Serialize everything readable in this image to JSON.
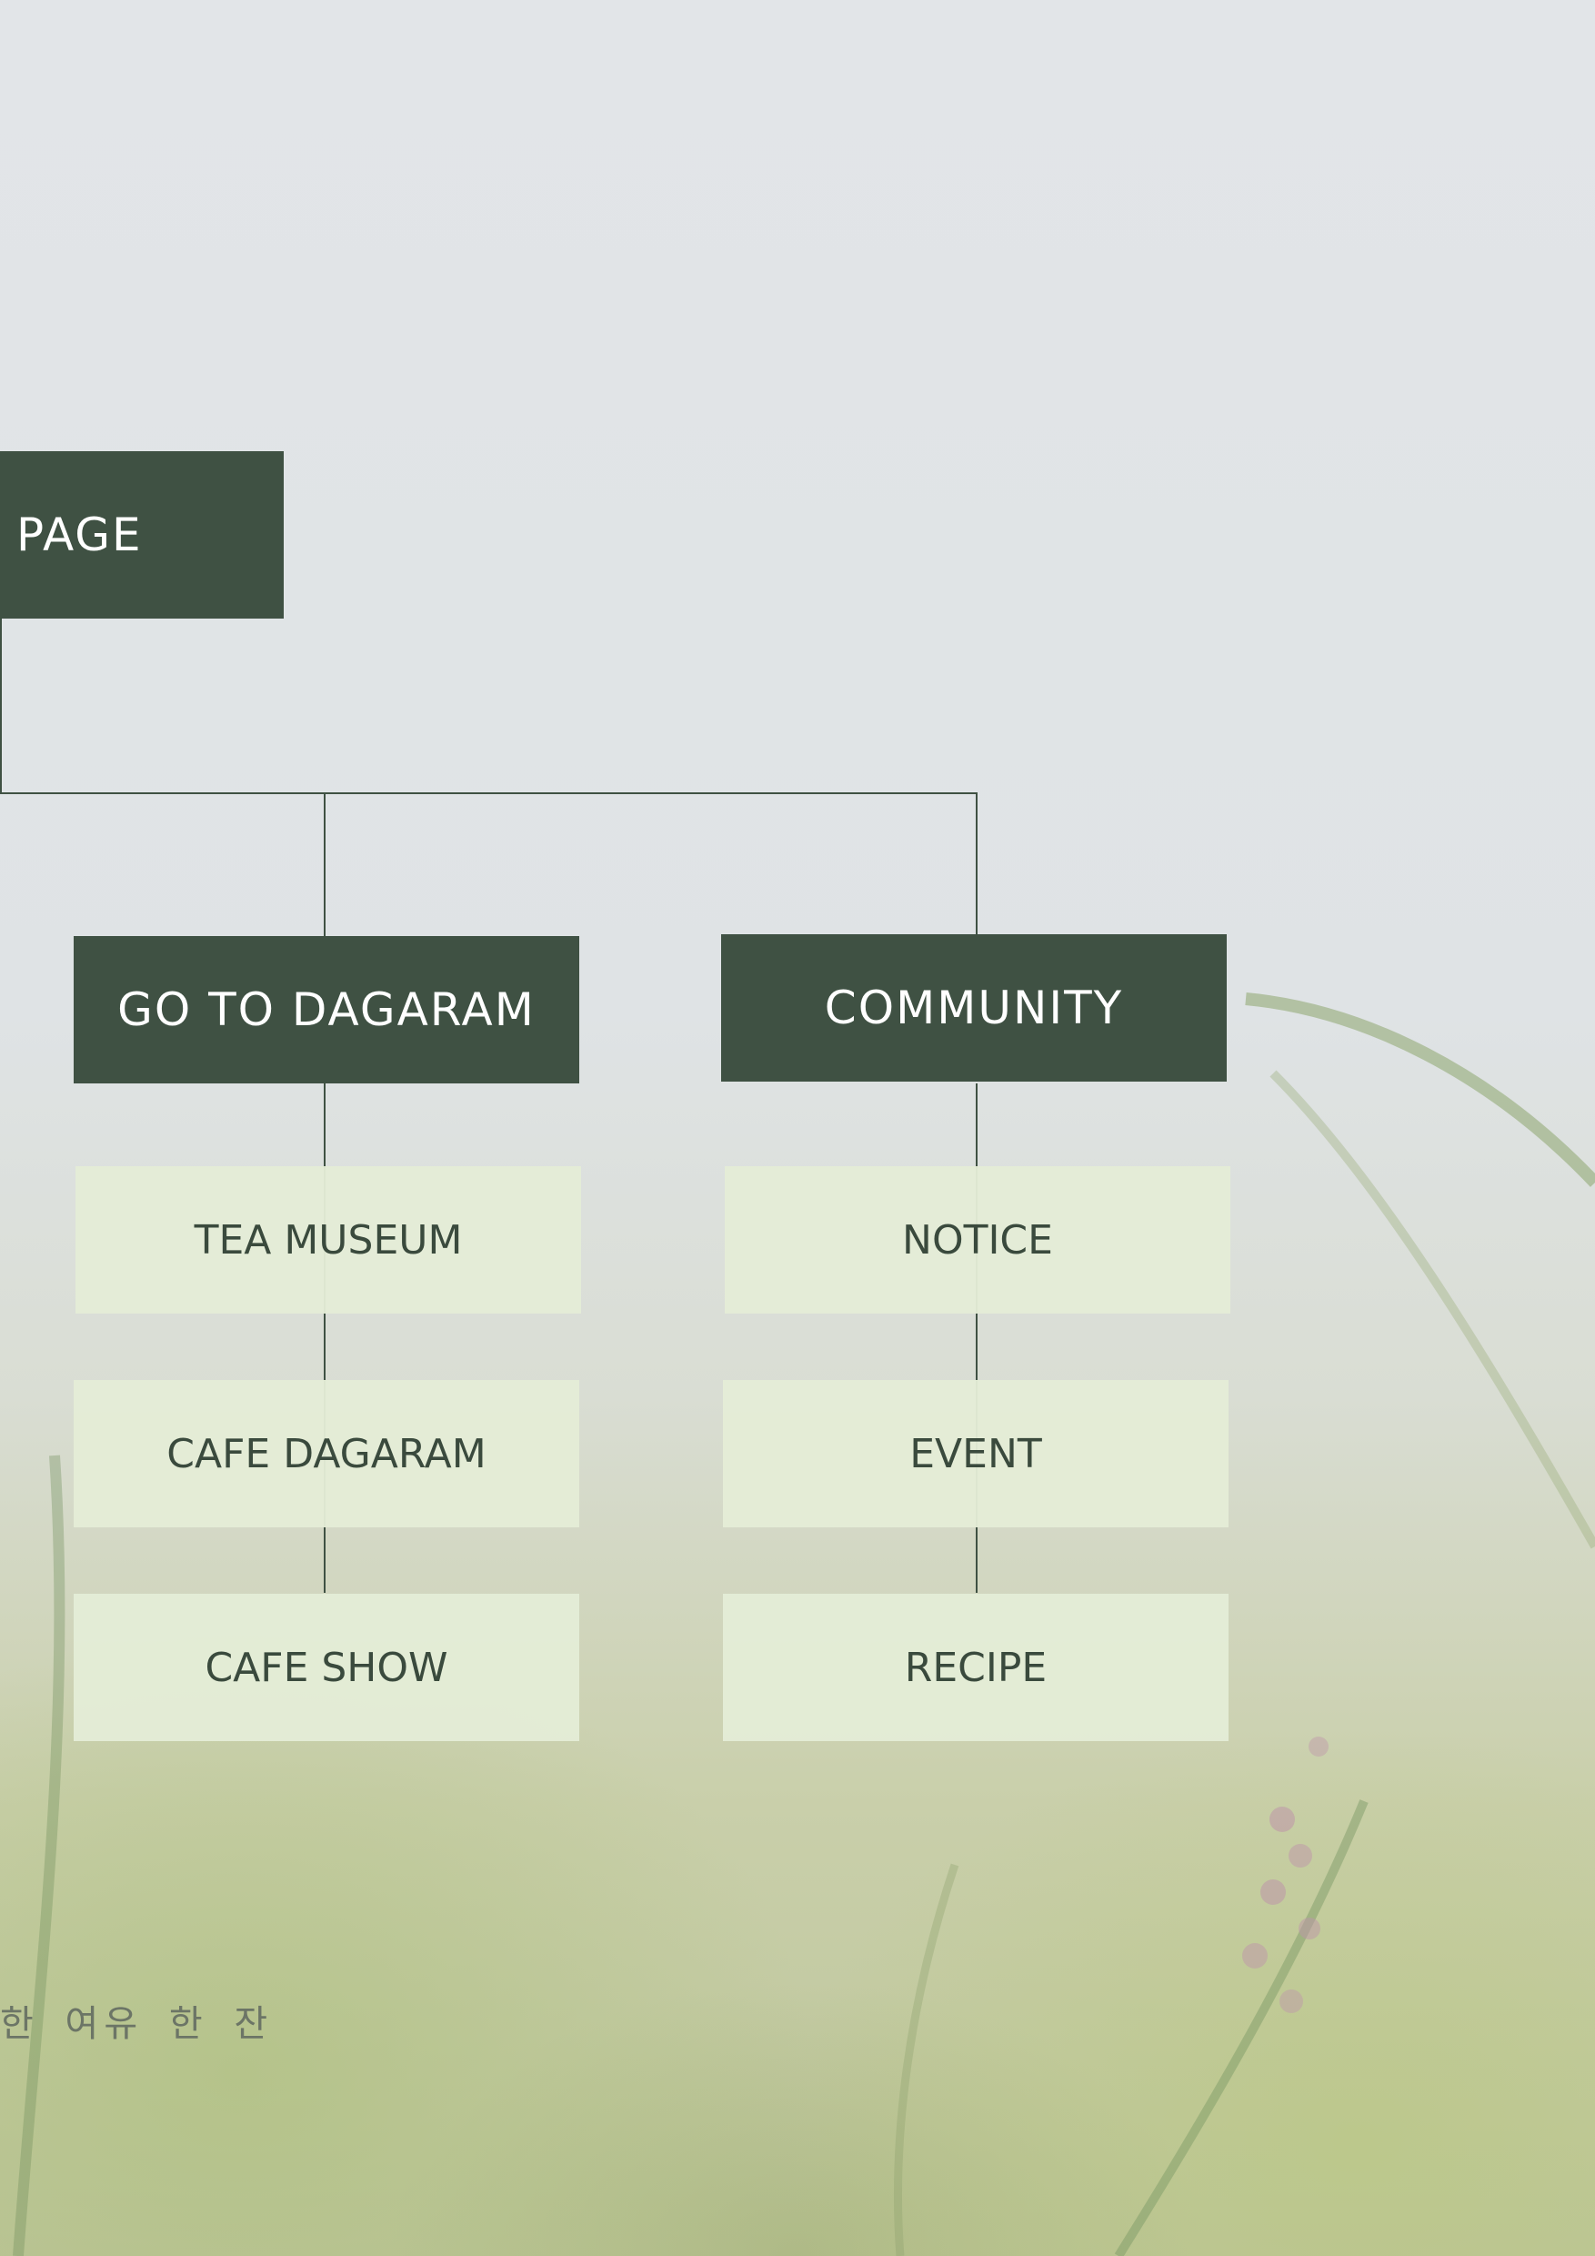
{
  "root": {
    "label": "PAGE"
  },
  "branches": [
    {
      "label": "GO TO DAGARAM",
      "children": [
        "TEA MUSEUM",
        "CAFE DAGARAM",
        "CAFE SHOW"
      ]
    },
    {
      "label": "COMMUNITY",
      "children": [
        "NOTICE",
        "EVENT",
        "RECIPE"
      ]
    }
  ],
  "footer": {
    "slogan": "한 여유 한 잔"
  },
  "colors": {
    "dark_box": "#3f5143",
    "light_box": "#e4ecd6",
    "connector": "#3f5143"
  }
}
